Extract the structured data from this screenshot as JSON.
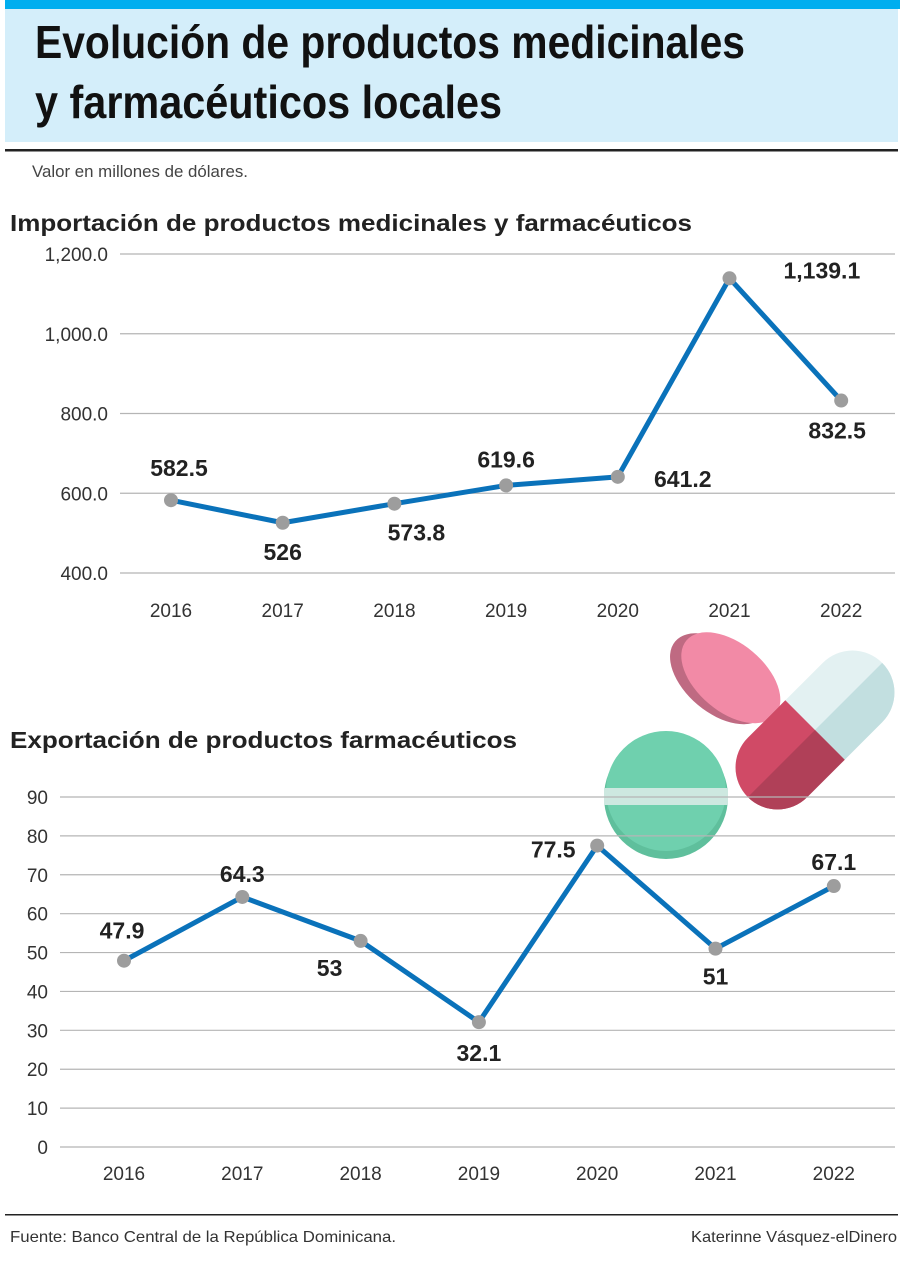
{
  "header": {
    "title_line1": "Evolución de productos medicinales",
    "title_line2": "y farmacéuticos locales",
    "subtitle": "Valor en millones de dólares."
  },
  "footer": {
    "source": "Fuente: Banco Central de la República Dominicana.",
    "credit": "Katerinne Vásquez-elDinero"
  },
  "colors": {
    "top_bar": "#00aeef",
    "header_bg": "#d4eefa",
    "line": "#0a72ba",
    "marker": "#9d9d9d"
  },
  "illustration": "pills-icon",
  "chart_data": [
    {
      "type": "line",
      "title": "Importación de productos medicinales y farmacéuticos",
      "categories": [
        "2016",
        "2017",
        "2018",
        "2019",
        "2020",
        "2021",
        "2022"
      ],
      "values": [
        582.5,
        526,
        573.8,
        619.6,
        641.2,
        1139.1,
        832.5
      ],
      "data_labels": [
        "582.5",
        "526",
        "573.8",
        "619.6",
        "641.2",
        "1,139.1",
        "832.5"
      ],
      "ylim": [
        400,
        1200
      ],
      "yticks": [
        400,
        600,
        800,
        1000,
        1200
      ],
      "ytick_labels": [
        "400.0",
        "600.0",
        "800.0",
        "1,000.0",
        "1,200.0"
      ],
      "grid": true,
      "xlabel": "",
      "ylabel": ""
    },
    {
      "type": "line",
      "title": "Exportación de productos farmacéuticos",
      "categories": [
        "2016",
        "2017",
        "2018",
        "2019",
        "2020",
        "2021",
        "2022"
      ],
      "values": [
        47.9,
        64.3,
        53,
        32.1,
        77.5,
        51,
        67.1
      ],
      "data_labels": [
        "47.9",
        "64.3",
        "53",
        "32.1",
        "77.5",
        "51",
        "67.1"
      ],
      "ylim": [
        0,
        90
      ],
      "yticks": [
        0,
        10,
        20,
        30,
        40,
        50,
        60,
        70,
        80,
        90
      ],
      "ytick_labels": [
        "0",
        "10",
        "20",
        "30",
        "40",
        "50",
        "60",
        "70",
        "80",
        "90"
      ],
      "grid": true,
      "xlabel": "",
      "ylabel": ""
    }
  ]
}
